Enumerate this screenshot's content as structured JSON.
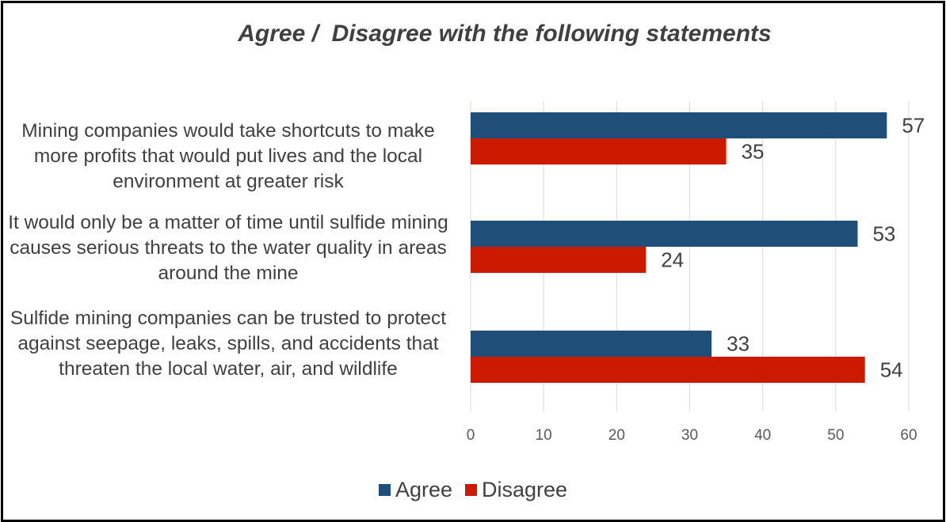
{
  "chart_data": {
    "type": "bar",
    "orientation": "horizontal",
    "title": "Agree /  Disagree with the following statements",
    "categories": [
      "Mining companies would take shortcuts to make more profits that would put lives and the local environment at greater risk",
      "It would only be a matter of time until sulfide mining causes serious threats to the water quality in areas around the mine",
      "Sulfide mining companies can be trusted to protect against seepage, leaks, spills, and accidents that threaten the local water, air, and wildlife"
    ],
    "series": [
      {
        "name": "Agree",
        "color": "#1f4e79",
        "values": [
          57,
          53,
          33
        ]
      },
      {
        "name": "Disagree",
        "color": "#cc1a00",
        "values": [
          35,
          24,
          54
        ]
      }
    ],
    "xlim": [
      0,
      60
    ],
    "xticks": [
      0,
      10,
      20,
      30,
      40,
      50,
      60
    ],
    "grid": true,
    "legend": "bottom",
    "data_labels": true
  }
}
